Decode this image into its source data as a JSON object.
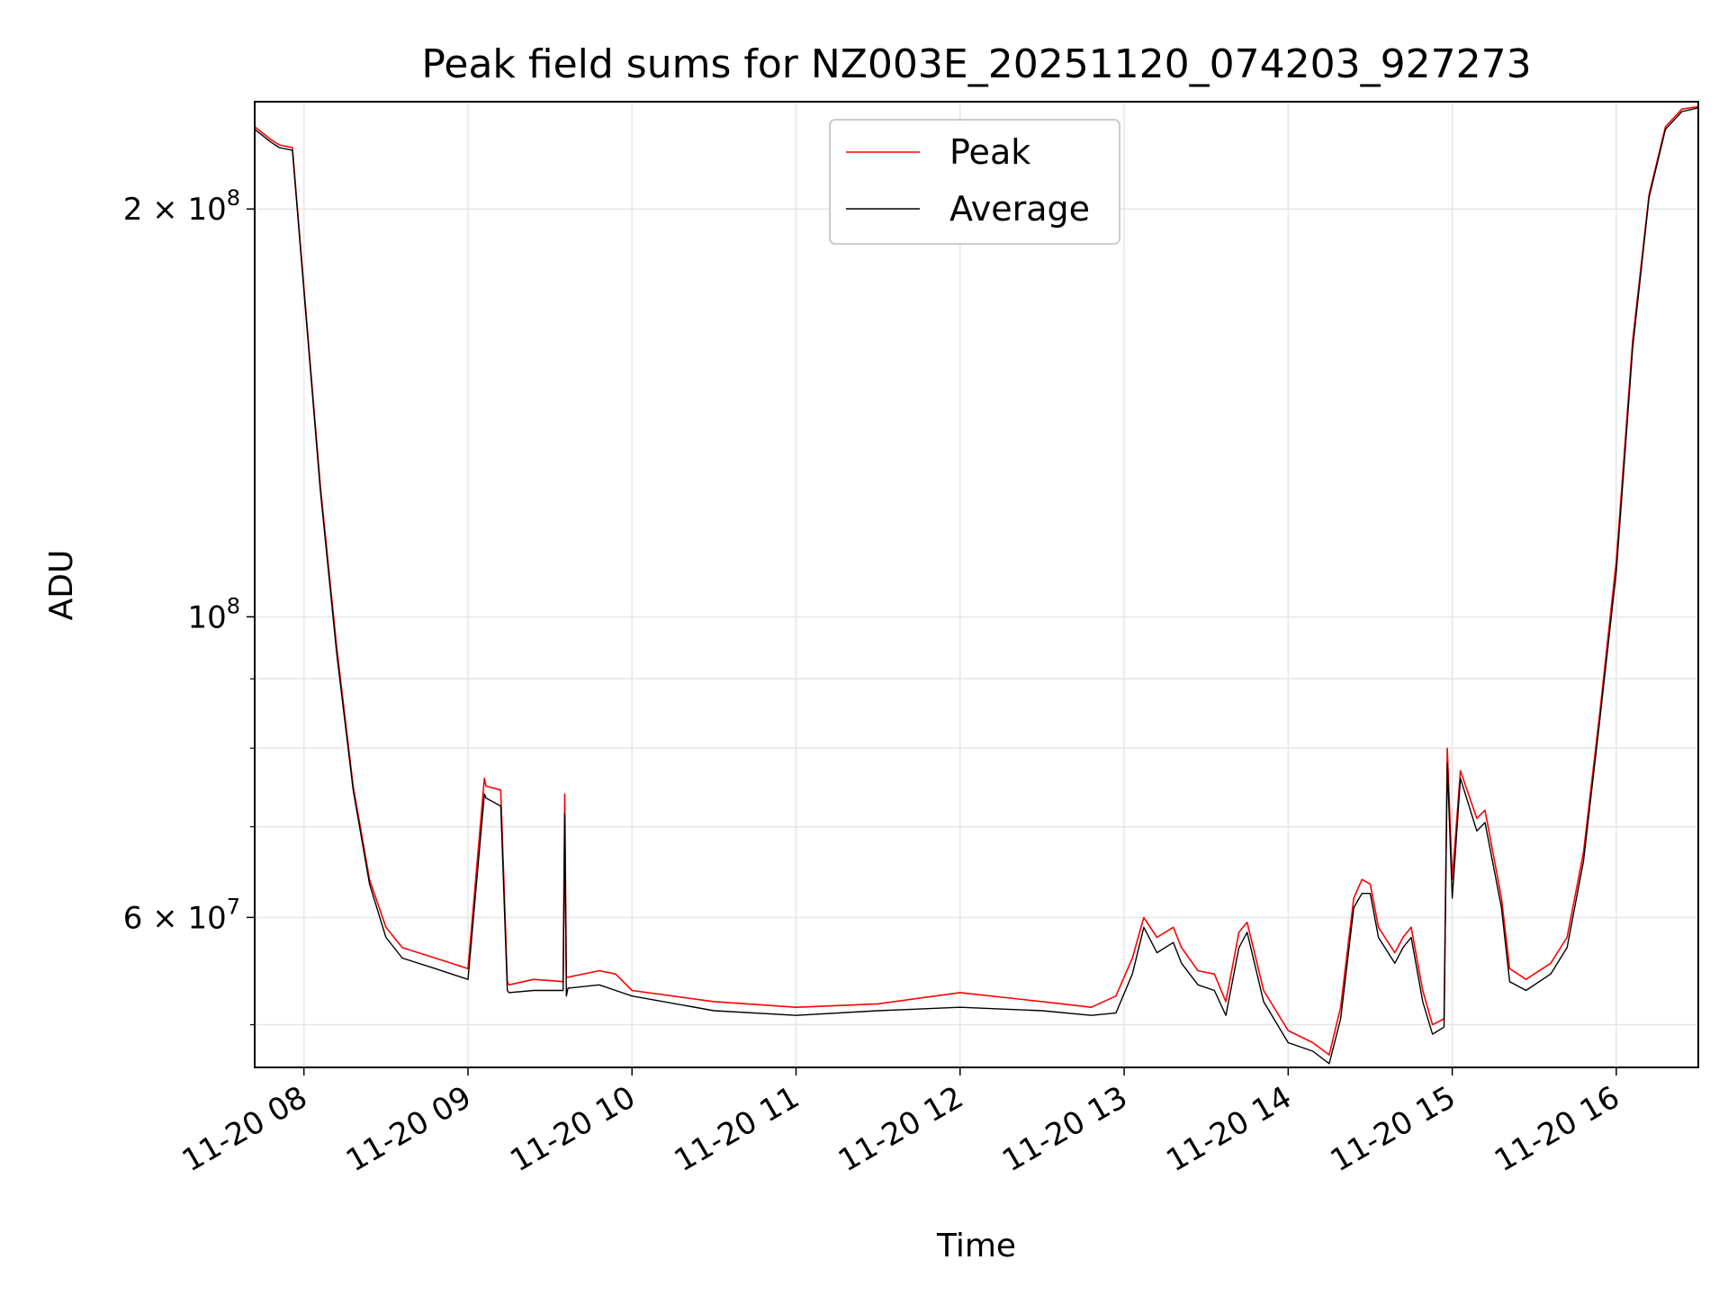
{
  "chart_data": {
    "type": "line",
    "title": "Peak field sums for NZ003E_20251120_074203_927273",
    "xlabel": "Time",
    "ylabel": "ADU",
    "yscale": "log",
    "ylim": [
      46500000,
      240000000
    ],
    "xlim_hours": [
      7.7,
      16.5
    ],
    "grid": true,
    "legend_position": "upper-center",
    "x_ticks": [
      {
        "value": 8,
        "label": "11-20 08"
      },
      {
        "value": 9,
        "label": "11-20 09"
      },
      {
        "value": 10,
        "label": "11-20 10"
      },
      {
        "value": 11,
        "label": "11-20 11"
      },
      {
        "value": 12,
        "label": "11-20 12"
      },
      {
        "value": 13,
        "label": "11-20 13"
      },
      {
        "value": 14,
        "label": "11-20 14"
      },
      {
        "value": 15,
        "label": "11-20 15"
      },
      {
        "value": 16,
        "label": "11-20 16"
      }
    ],
    "y_major_ticks": [
      {
        "value": 60000000,
        "mantissa": "6 × 10",
        "exponent": "7"
      },
      {
        "value": 100000000,
        "mantissa": "10",
        "exponent": "8"
      },
      {
        "value": 200000000,
        "mantissa": "2 × 10",
        "exponent": "8"
      }
    ],
    "y_minor_grid": [
      50000000,
      70000000,
      80000000,
      90000000
    ],
    "series": [
      {
        "name": "Peak",
        "color": "#ff0000",
        "x": [
          7.7,
          7.8,
          7.85,
          7.93,
          8.0,
          8.1,
          8.2,
          8.3,
          8.4,
          8.5,
          8.6,
          8.8,
          9.0,
          9.1,
          9.11,
          9.2,
          9.24,
          9.25,
          9.4,
          9.58,
          9.59,
          9.6,
          9.61,
          9.8,
          9.9,
          10.0,
          10.5,
          11.0,
          11.5,
          12.0,
          12.5,
          12.8,
          12.95,
          13.05,
          13.12,
          13.2,
          13.3,
          13.35,
          13.45,
          13.55,
          13.62,
          13.7,
          13.75,
          13.85,
          14.0,
          14.15,
          14.25,
          14.32,
          14.4,
          14.45,
          14.5,
          14.55,
          14.65,
          14.7,
          14.75,
          14.82,
          14.88,
          14.95,
          14.97,
          15.0,
          15.05,
          15.15,
          15.2,
          15.3,
          15.35,
          15.45,
          15.6,
          15.7,
          15.8,
          15.9,
          16.0,
          16.1,
          16.2,
          16.3,
          16.4,
          16.5
        ],
        "values": [
          230000000,
          225000000,
          223000000,
          222000000,
          175000000,
          125000000,
          95000000,
          75000000,
          64000000,
          59000000,
          57000000,
          56000000,
          55000000,
          76000000,
          75000000,
          74500000,
          53800000,
          53500000,
          54000000,
          53800000,
          74000000,
          54200000,
          54200000,
          54800000,
          54500000,
          53000000,
          52000000,
          51500000,
          51800000,
          52800000,
          52000000,
          51500000,
          52500000,
          56000000,
          60000000,
          58000000,
          59000000,
          57000000,
          54800000,
          54500000,
          52000000,
          58500000,
          59500000,
          53000000,
          49500000,
          48500000,
          47500000,
          51500000,
          62000000,
          64000000,
          63500000,
          59000000,
          56500000,
          58000000,
          59000000,
          53000000,
          50000000,
          50500000,
          80000000,
          64000000,
          77000000,
          71000000,
          72000000,
          62000000,
          55000000,
          54000000,
          55500000,
          58000000,
          67000000,
          85000000,
          110000000,
          160000000,
          205000000,
          230000000,
          237000000,
          238000000
        ]
      },
      {
        "name": "Average",
        "color": "#000000",
        "x": [
          7.7,
          7.8,
          7.85,
          7.93,
          8.0,
          8.1,
          8.2,
          8.3,
          8.4,
          8.5,
          8.6,
          8.8,
          9.0,
          9.1,
          9.11,
          9.2,
          9.24,
          9.25,
          9.4,
          9.58,
          9.59,
          9.6,
          9.61,
          9.8,
          9.9,
          10.0,
          10.5,
          11.0,
          11.5,
          12.0,
          12.5,
          12.8,
          12.95,
          13.05,
          13.12,
          13.2,
          13.3,
          13.35,
          13.45,
          13.55,
          13.62,
          13.7,
          13.75,
          13.85,
          14.0,
          14.15,
          14.25,
          14.32,
          14.4,
          14.45,
          14.5,
          14.55,
          14.65,
          14.7,
          14.75,
          14.82,
          14.88,
          14.95,
          14.97,
          15.0,
          15.05,
          15.15,
          15.2,
          15.3,
          15.35,
          15.45,
          15.6,
          15.7,
          15.8,
          15.9,
          16.0,
          16.1,
          16.2,
          16.3,
          16.4,
          16.5
        ],
        "values": [
          229000000,
          224000000,
          222000000,
          221000000,
          174000000,
          124000000,
          94000000,
          74500000,
          63500000,
          58000000,
          56000000,
          55000000,
          54000000,
          74000000,
          73500000,
          72500000,
          53000000,
          52800000,
          53000000,
          53000000,
          71500000,
          52500000,
          53200000,
          53500000,
          53000000,
          52500000,
          51200000,
          50800000,
          51200000,
          51500000,
          51200000,
          50800000,
          51000000,
          54500000,
          59000000,
          56500000,
          57500000,
          55500000,
          53500000,
          53000000,
          50800000,
          57000000,
          58500000,
          52000000,
          48500000,
          47800000,
          46800000,
          50500000,
          61000000,
          62500000,
          62500000,
          58000000,
          55500000,
          57000000,
          58000000,
          52000000,
          49200000,
          49800000,
          78000000,
          62000000,
          76000000,
          69500000,
          70500000,
          61000000,
          53800000,
          53000000,
          54500000,
          57000000,
          66000000,
          84000000,
          108000000,
          158000000,
          204000000,
          229000000,
          236000000,
          237500000
        ]
      }
    ]
  }
}
